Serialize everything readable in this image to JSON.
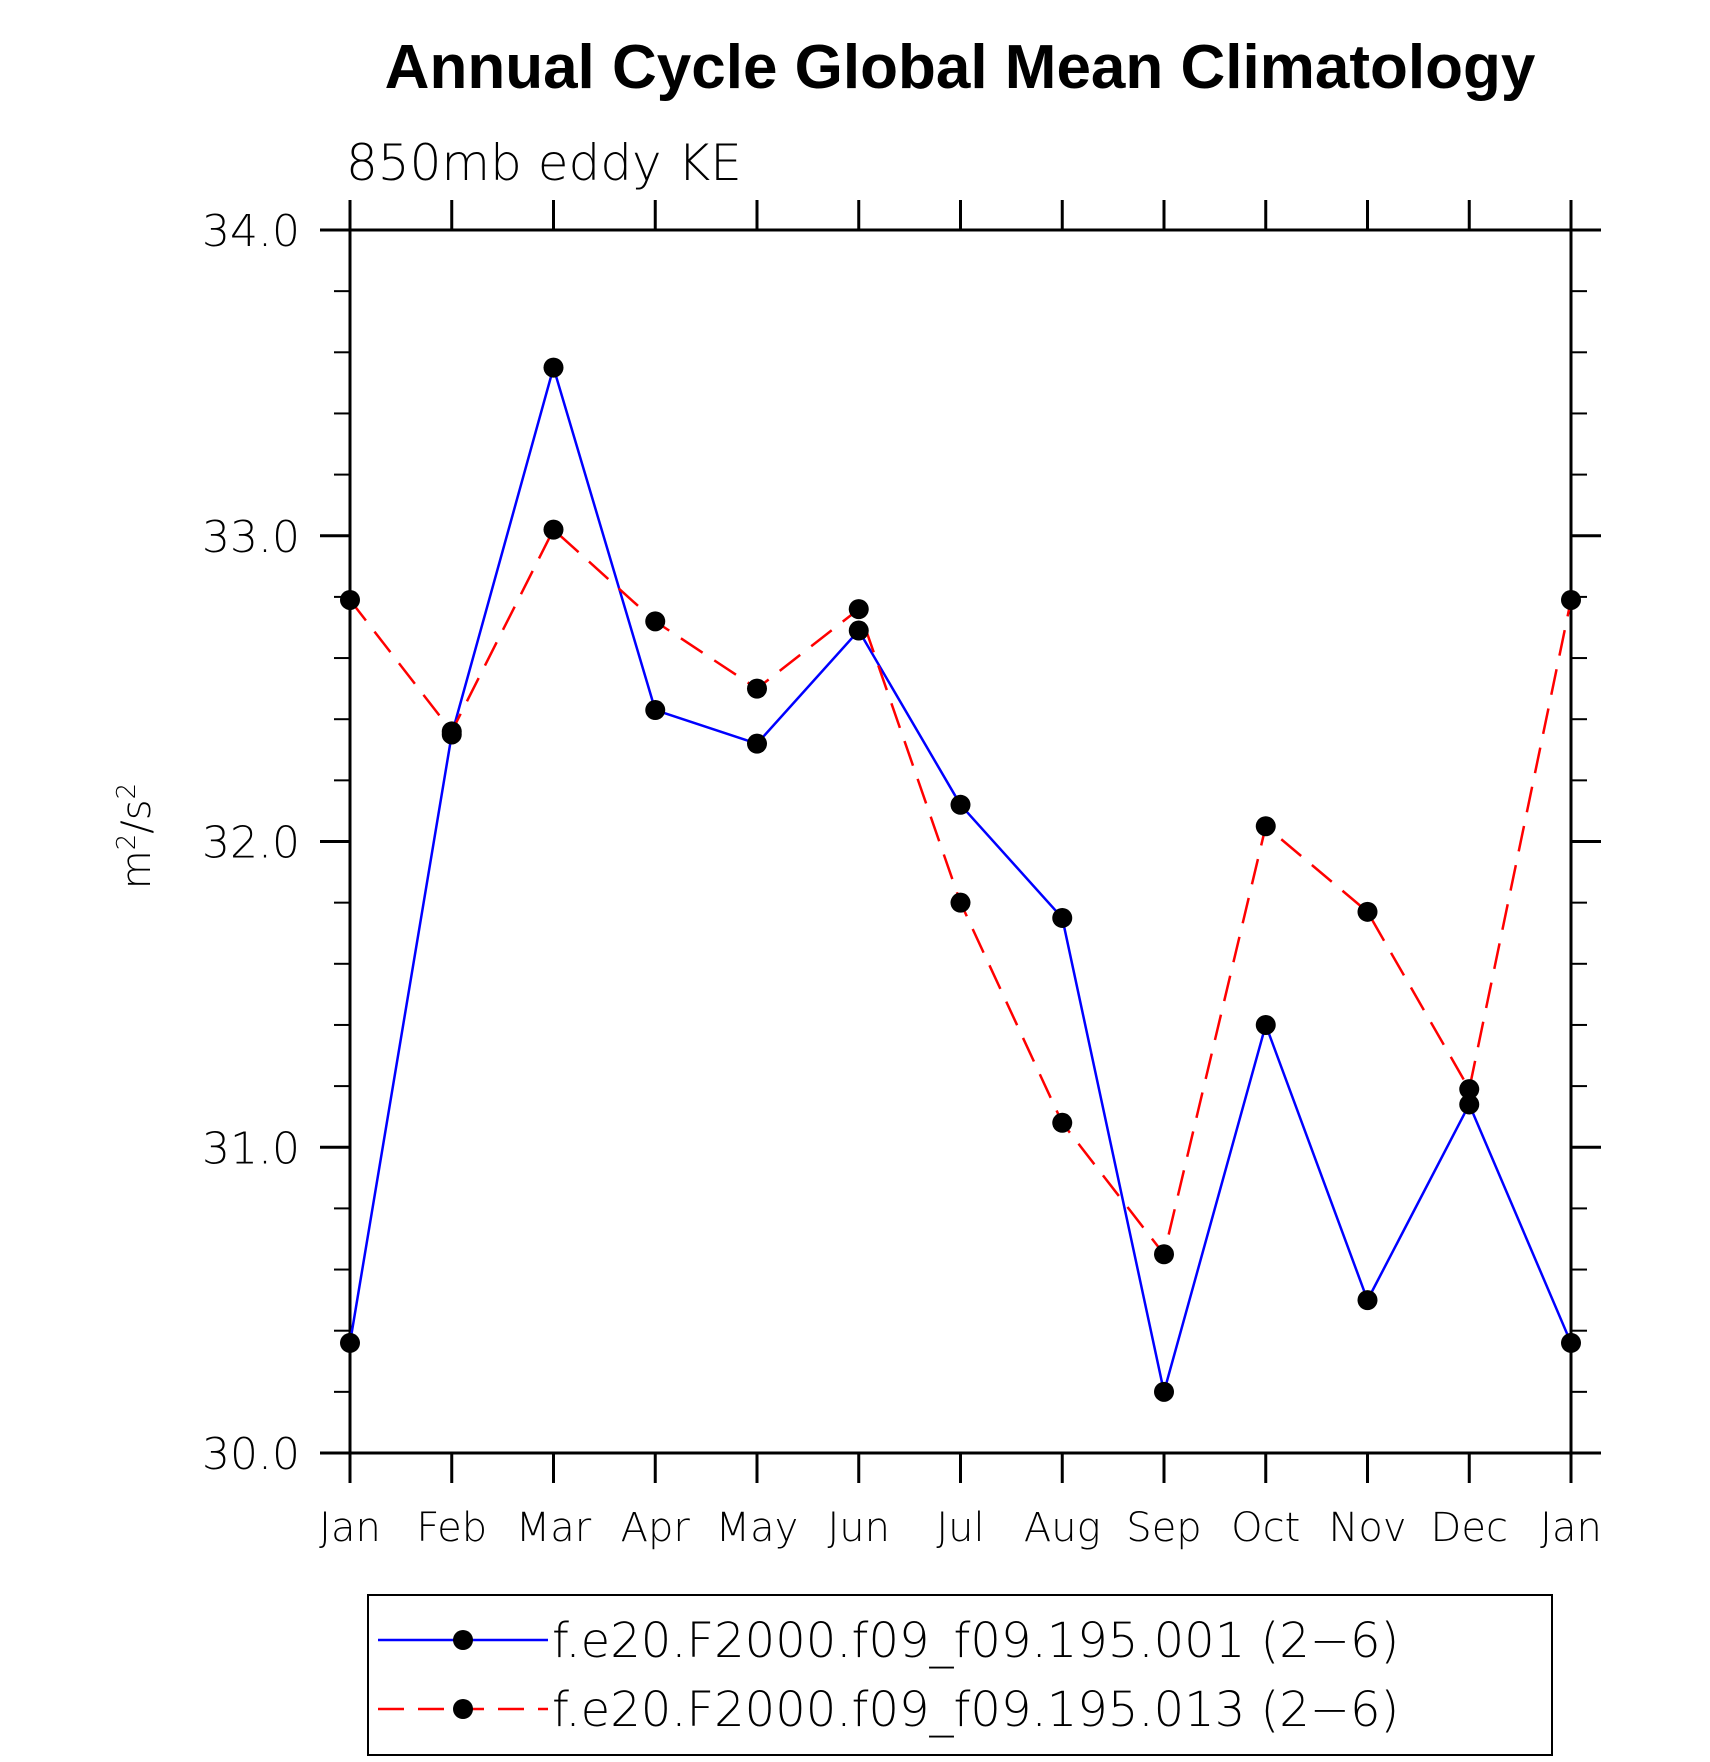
{
  "chart_data": {
    "type": "line",
    "title": "Annual Cycle Global Mean Climatology",
    "subtitle": "850mb eddy KE",
    "ylabel": "m^2/s^2",
    "ylabel_base": "m",
    "ylabel_sup": "2",
    "ylabel_mid": "/s",
    "ylabel_sup2": "2",
    "xlabel": "",
    "ylim": [
      30.0,
      34.0
    ],
    "yticks": [
      "30.0",
      "31.0",
      "32.0",
      "33.0",
      "34.0"
    ],
    "yminor_step": 0.2,
    "categories": [
      "Jan",
      "Feb",
      "Mar",
      "Apr",
      "May",
      "Jun",
      "Jul",
      "Aug",
      "Sep",
      "Oct",
      "Nov",
      "Dec",
      "Jan"
    ],
    "grid": false,
    "legend_position": "bottom",
    "series": [
      {
        "name": "f.e20.F2000.f09_f09.195.001 (2−6)",
        "color": "#0000ff",
        "style": "solid",
        "marker": "filled-circle",
        "values": [
          30.36,
          32.35,
          33.55,
          32.43,
          32.32,
          32.69,
          32.12,
          31.75,
          30.2,
          31.4,
          30.5,
          31.14,
          30.36
        ]
      },
      {
        "name": "f.e20.F2000.f09_f09.195.013 (2−6)",
        "color": "#ff0000",
        "style": "dashed",
        "marker": "filled-circle",
        "values": [
          32.79,
          32.36,
          33.02,
          32.72,
          32.5,
          32.76,
          31.8,
          31.08,
          30.65,
          32.05,
          31.77,
          31.19,
          32.79
        ]
      }
    ]
  }
}
